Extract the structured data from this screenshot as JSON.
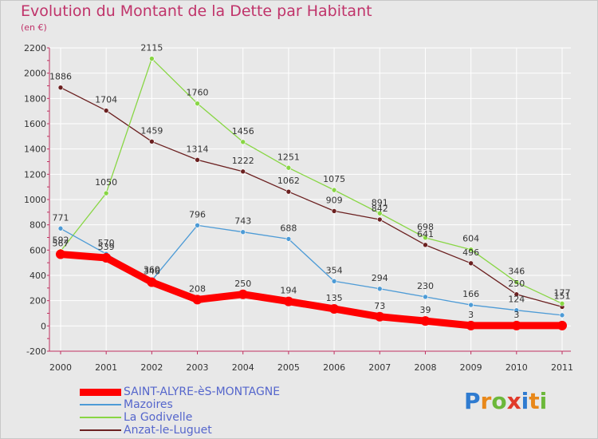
{
  "chart_data": {
    "type": "line",
    "title": "Evolution du Montant de la Dette par Habitant",
    "subtitle": "(en €)",
    "categories": [
      "2000",
      "2001",
      "2002",
      "2003",
      "2004",
      "2005",
      "2006",
      "2007",
      "2008",
      "2009",
      "2010",
      "2011"
    ],
    "ylim": [
      -200,
      2200
    ],
    "yticks": [
      -200,
      0,
      200,
      400,
      600,
      800,
      1000,
      1200,
      1400,
      1600,
      1800,
      2000,
      2200
    ],
    "grid": true,
    "legend_position": "bottom-left",
    "series": [
      {
        "name": "SAINT-ALYRE-èS-MONTAGNE",
        "color": "#ff0000",
        "values": [
          567,
          539,
          346,
          208,
          250,
          194,
          135,
          73,
          39,
          3,
          3,
          3
        ],
        "labels": [
          "567",
          "539",
          "346",
          "208",
          "250",
          "194",
          "135",
          "73",
          "39",
          "3",
          "3",
          ""
        ]
      },
      {
        "name": "Mazoires",
        "color": "#4d9bd6",
        "values": [
          771,
          570,
          360,
          796,
          743,
          688,
          354,
          294,
          230,
          166,
          124,
          85
        ],
        "labels": [
          "771",
          "570",
          "360",
          "796",
          "743",
          "688",
          "354",
          "294",
          "230",
          "166",
          "124",
          ""
        ]
      },
      {
        "name": "La Godivelle",
        "color": "#88d644",
        "values": [
          592,
          1050,
          2115,
          1760,
          1456,
          1251,
          1075,
          891,
          698,
          604,
          346,
          177
        ],
        "labels": [
          "592",
          "1050",
          "2115",
          "1760",
          "1456",
          "1251",
          "1075",
          "891",
          "698",
          "604",
          "346",
          "177"
        ]
      },
      {
        "name": "Anzat-le-Luguet",
        "color": "#6b2020",
        "values": [
          1886,
          1704,
          1459,
          1314,
          1222,
          1062,
          909,
          842,
          641,
          496,
          250,
          151
        ],
        "labels": [
          "1886",
          "1704",
          "1459",
          "1314",
          "1222",
          "1062",
          "909",
          "842",
          "641",
          "496",
          "250",
          "151"
        ]
      }
    ]
  },
  "logo": {
    "letters": [
      "P",
      "r",
      "o",
      "x",
      "i",
      "t",
      "i"
    ],
    "colors": [
      "#2f7bd0",
      "#e8881a",
      "#6cb83a",
      "#e03a2a",
      "#2f7bd0",
      "#e8881a",
      "#6cb83a"
    ]
  }
}
